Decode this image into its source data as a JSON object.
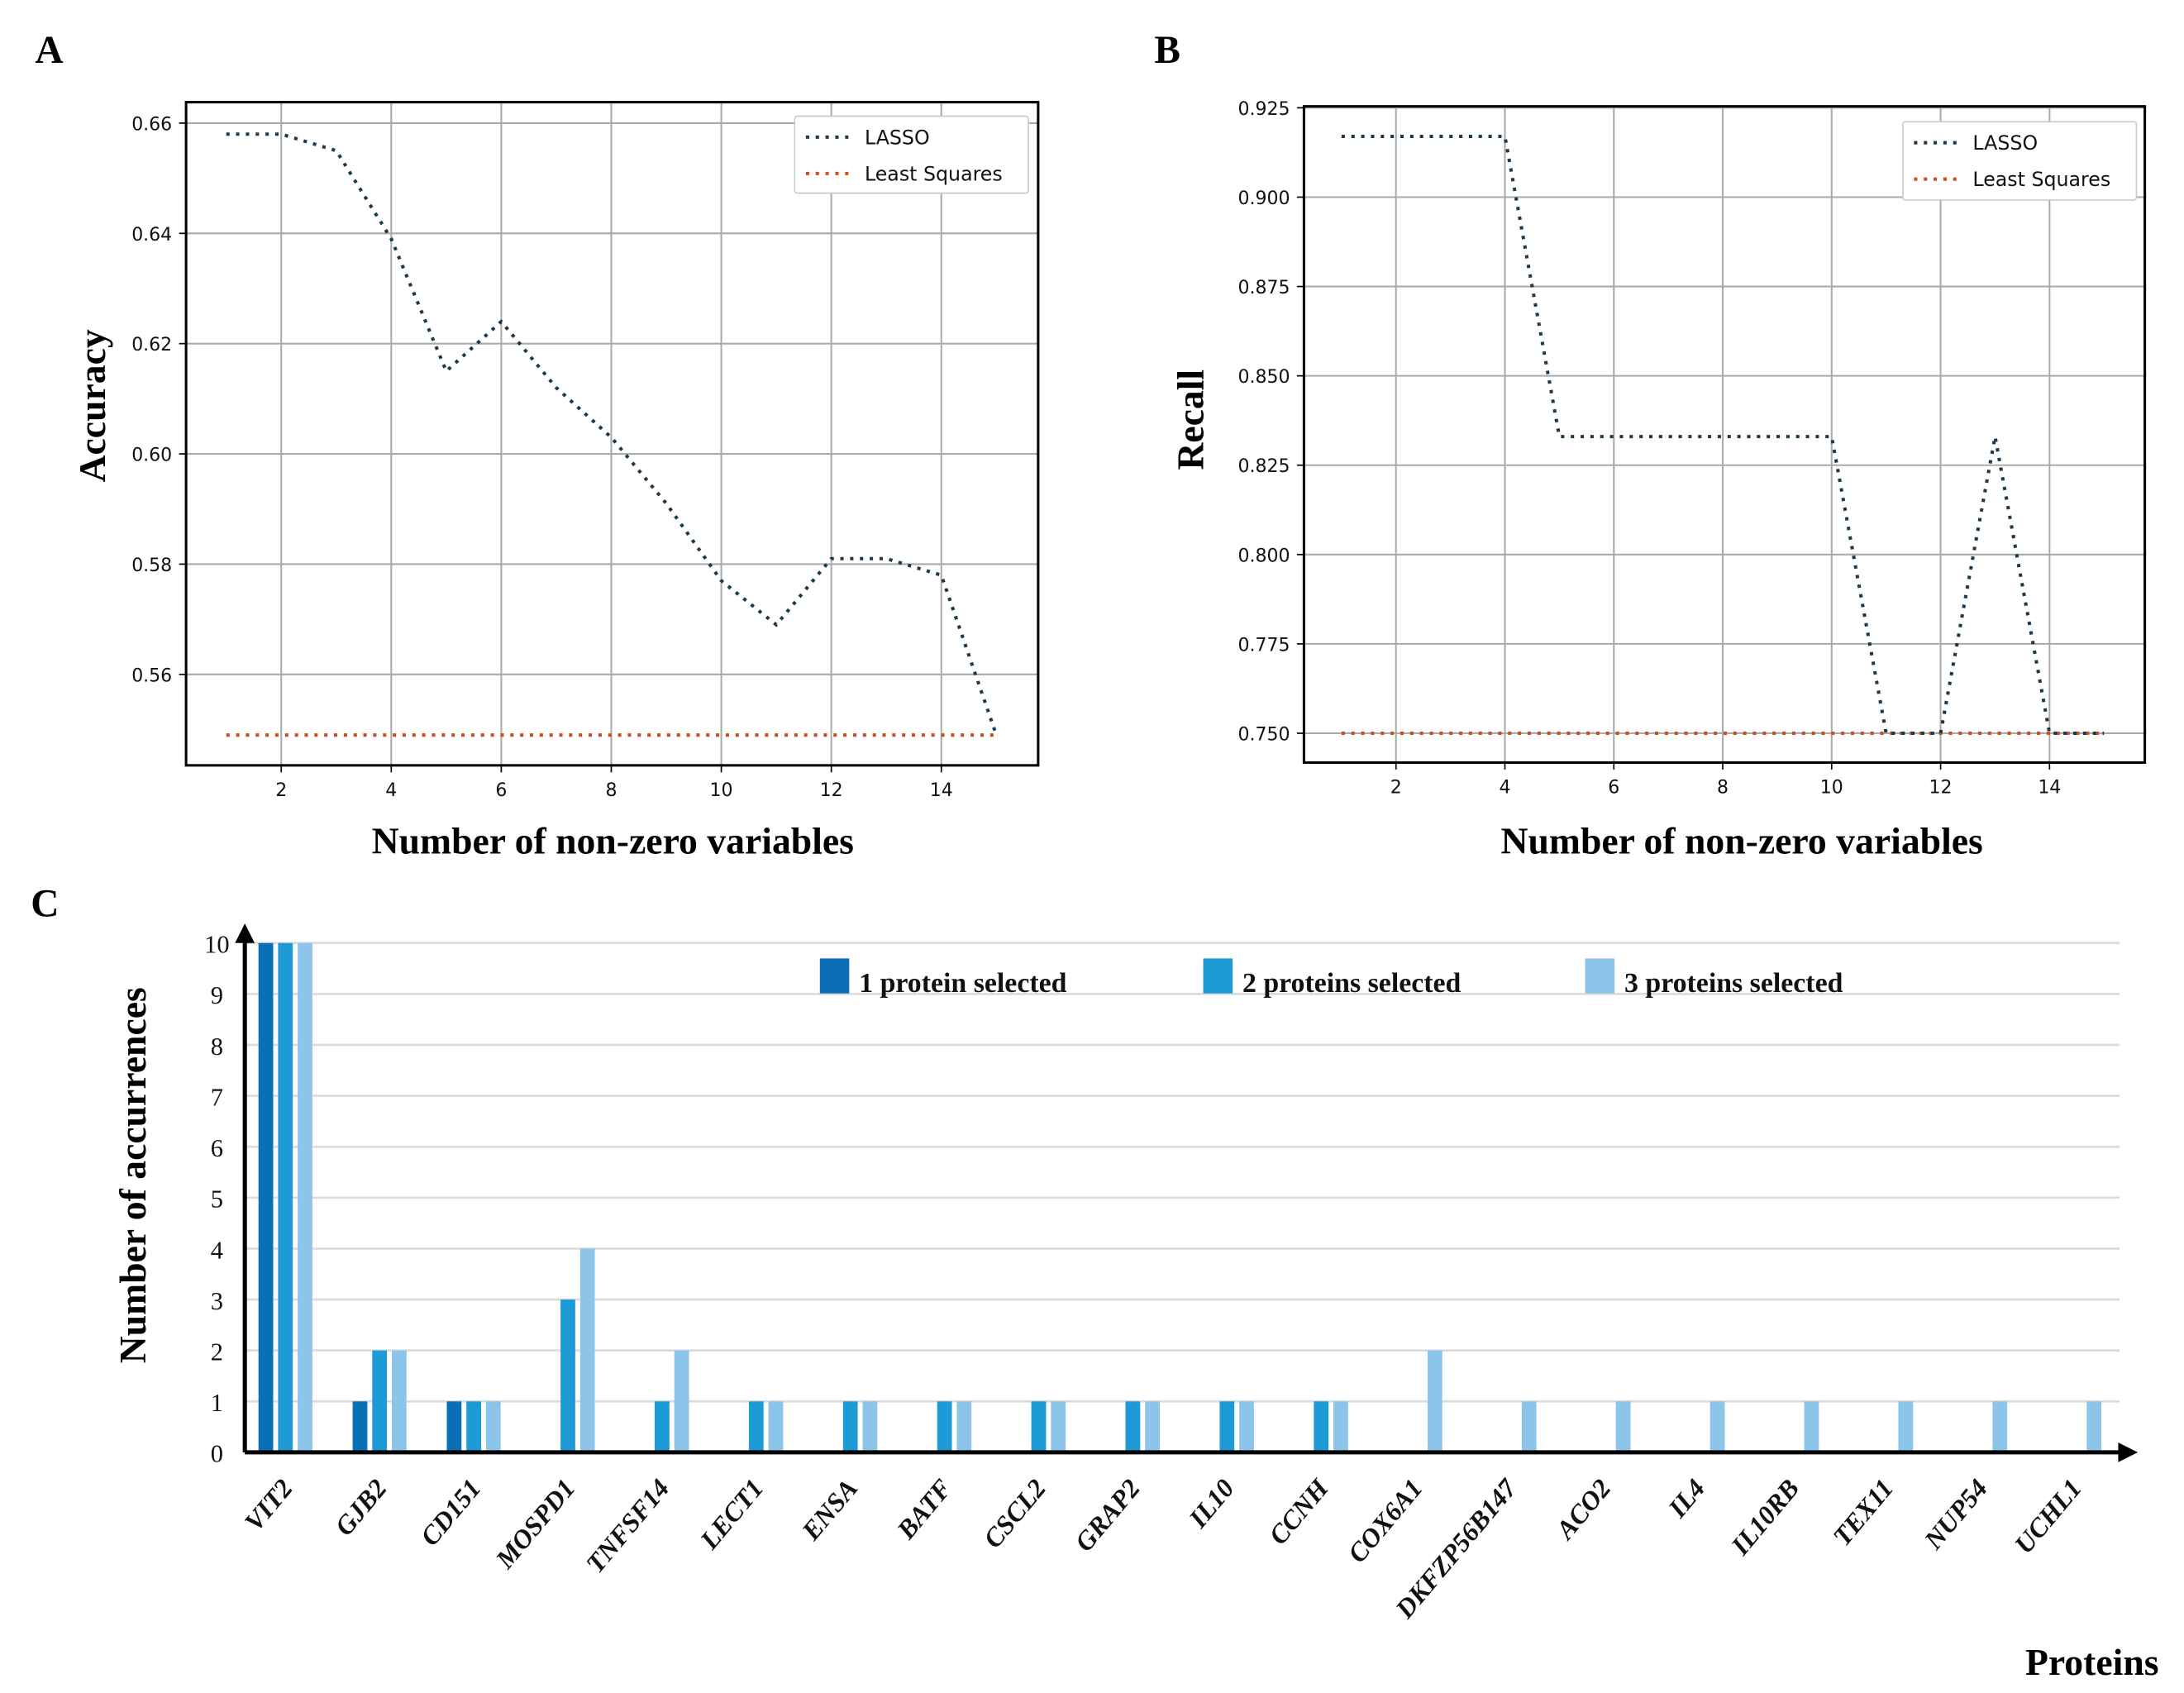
{
  "chart_data": [
    {
      "panel": "A",
      "type": "line",
      "xlabel": "Number of non-zero variables",
      "ylabel": "Accuracy",
      "x": [
        1,
        2,
        3,
        4,
        5,
        6,
        7,
        8,
        9,
        10,
        11,
        12,
        13,
        14,
        15
      ],
      "xticks": [
        2,
        4,
        6,
        8,
        10,
        12,
        14
      ],
      "yticks": [
        "0.56",
        "0.58",
        "0.60",
        "0.62",
        "0.64",
        "0.66"
      ],
      "xlim": [
        0.27,
        15.76
      ],
      "ylim": [
        0.5435,
        0.6638
      ],
      "grid": true,
      "legend_position": "top-right",
      "series": [
        {
          "name": "LASSO",
          "color": "#1b3a4b",
          "style": "dotted",
          "values": [
            0.658,
            0.658,
            0.655,
            0.639,
            0.615,
            0.624,
            0.612,
            0.603,
            0.591,
            0.577,
            0.569,
            0.581,
            0.581,
            0.578,
            0.549
          ]
        },
        {
          "name": "Least Squares",
          "color": "#c8501e",
          "style": "dotted",
          "values": [
            0.549,
            0.549,
            0.549,
            0.549,
            0.549,
            0.549,
            0.549,
            0.549,
            0.549,
            0.549,
            0.549,
            0.549,
            0.549,
            0.549,
            0.549
          ]
        }
      ]
    },
    {
      "panel": "B",
      "type": "line",
      "xlabel": "Number of non-zero variables",
      "ylabel": "Recall",
      "x": [
        1,
        2,
        3,
        4,
        5,
        6,
        7,
        8,
        9,
        10,
        11,
        12,
        13,
        14,
        15
      ],
      "xticks": [
        2,
        4,
        6,
        8,
        10,
        12,
        14
      ],
      "yticks": [
        "0.750",
        "0.775",
        "0.800",
        "0.825",
        "0.850",
        "0.875",
        "0.900",
        "0.925"
      ],
      "xlim": [
        0.31,
        15.75
      ],
      "ylim": [
        0.7418,
        0.9254
      ],
      "grid": true,
      "legend_position": "top-right",
      "series": [
        {
          "name": "LASSO",
          "color": "#1b3a4b",
          "style": "dotted",
          "values": [
            0.917,
            0.917,
            0.917,
            0.917,
            0.833,
            0.833,
            0.833,
            0.833,
            0.833,
            0.833,
            0.75,
            0.75,
            0.833,
            0.75,
            0.75
          ]
        },
        {
          "name": "Least Squares",
          "color": "#c8501e",
          "style": "dotted",
          "values": [
            0.75,
            0.75,
            0.75,
            0.75,
            0.75,
            0.75,
            0.75,
            0.75,
            0.75,
            0.75,
            0.75,
            0.75,
            0.75,
            0.75,
            0.75
          ]
        }
      ]
    },
    {
      "panel": "C",
      "type": "bar",
      "xlabel": "Proteins",
      "ylabel": "Number of accurrences",
      "ylim": [
        0,
        10
      ],
      "yticks": [
        "0",
        "1",
        "2",
        "3",
        "4",
        "5",
        "6",
        "7",
        "8",
        "9",
        "10"
      ],
      "grid": true,
      "legend_position": "top",
      "categories": [
        "VIT2",
        "GJB2",
        "CD151",
        "MOSPD1",
        "TNFSF14",
        "LECT1",
        "ENSA",
        "BATF",
        "CSCL2",
        "GRAP2",
        "IL10",
        "CCNH",
        "COX6A1",
        "DKFZP56B147",
        "ACO2",
        "IL4",
        "IL10RB",
        "TEX11",
        "NUP54",
        "UCHL1"
      ],
      "series": [
        {
          "name": "1 protein selected",
          "color": "#0a6fb5",
          "values": [
            10,
            1,
            1,
            0,
            0,
            0,
            0,
            0,
            0,
            0,
            0,
            0,
            0,
            0,
            0,
            0,
            0,
            0,
            0,
            0
          ]
        },
        {
          "name": "2 proteins selected",
          "color": "#1e9ad6",
          "values": [
            10,
            2,
            1,
            3,
            1,
            1,
            1,
            1,
            1,
            1,
            1,
            1,
            0,
            0,
            0,
            0,
            0,
            0,
            0,
            0
          ]
        },
        {
          "name": "3 proteins selected",
          "color": "#8dc4ea",
          "values": [
            10,
            2,
            1,
            4,
            2,
            1,
            1,
            1,
            1,
            1,
            1,
            1,
            2,
            1,
            1,
            1,
            1,
            1,
            1,
            1
          ]
        }
      ]
    }
  ]
}
